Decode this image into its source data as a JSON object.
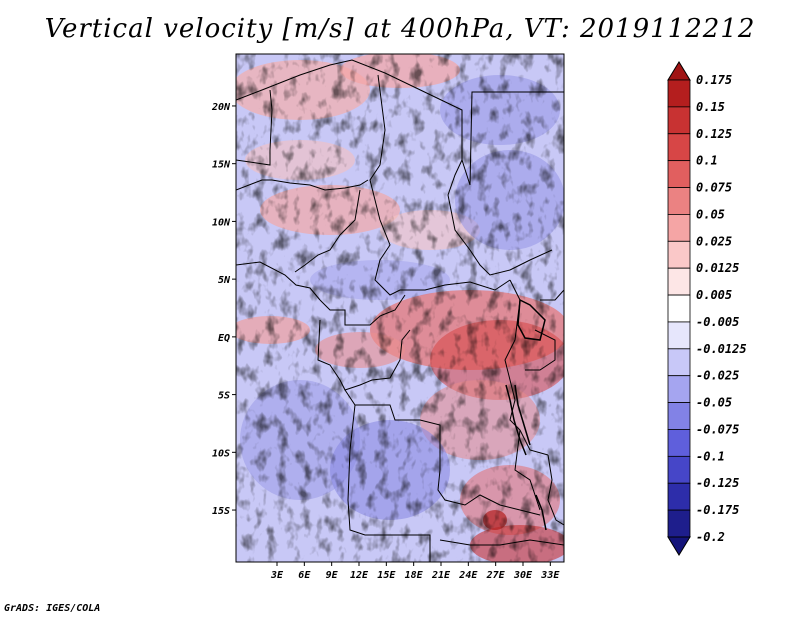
{
  "title": "Vertical velocity [m/s] at 400hPa, VT: 2019112212",
  "footer": "GrADS: IGES/COLA",
  "map": {
    "lat_range": [
      -19.5,
      24.5
    ],
    "lon_range": [
      -1.5,
      34.5
    ],
    "lat_ticks": [
      "20N",
      "15N",
      "10N",
      "5N",
      "EQ",
      "5S",
      "10S",
      "15S"
    ],
    "lat_tick_values": [
      20,
      15,
      10,
      5,
      0,
      -5,
      -10,
      -15
    ],
    "lon_ticks": [
      "3E",
      "6E",
      "9E",
      "12E",
      "15E",
      "18E",
      "21E",
      "24E",
      "27E",
      "30E",
      "33E"
    ],
    "lon_tick_values": [
      3,
      6,
      9,
      12,
      15,
      18,
      21,
      24,
      27,
      30,
      33
    ]
  },
  "colorbar": {
    "labels": [
      "0.175",
      "0.15",
      "0.125",
      "0.1",
      "0.075",
      "0.05",
      "0.025",
      "0.0125",
      "0.005",
      "-0.005",
      "-0.0125",
      "-0.025",
      "-0.05",
      "-0.075",
      "-0.1",
      "-0.125",
      "-0.175",
      "-0.2"
    ],
    "colors": [
      "#a01414",
      "#b41e1e",
      "#c83232",
      "#d74646",
      "#e15f5f",
      "#eb8282",
      "#f5a5a5",
      "#fac8c8",
      "#fde6e6",
      "#ffffff",
      "#e6e6fc",
      "#c8c8f8",
      "#a5a5f0",
      "#8282e6",
      "#5f5fdc",
      "#4646c8",
      "#2d2daa",
      "#1e1e8c",
      "#14147a"
    ]
  }
}
